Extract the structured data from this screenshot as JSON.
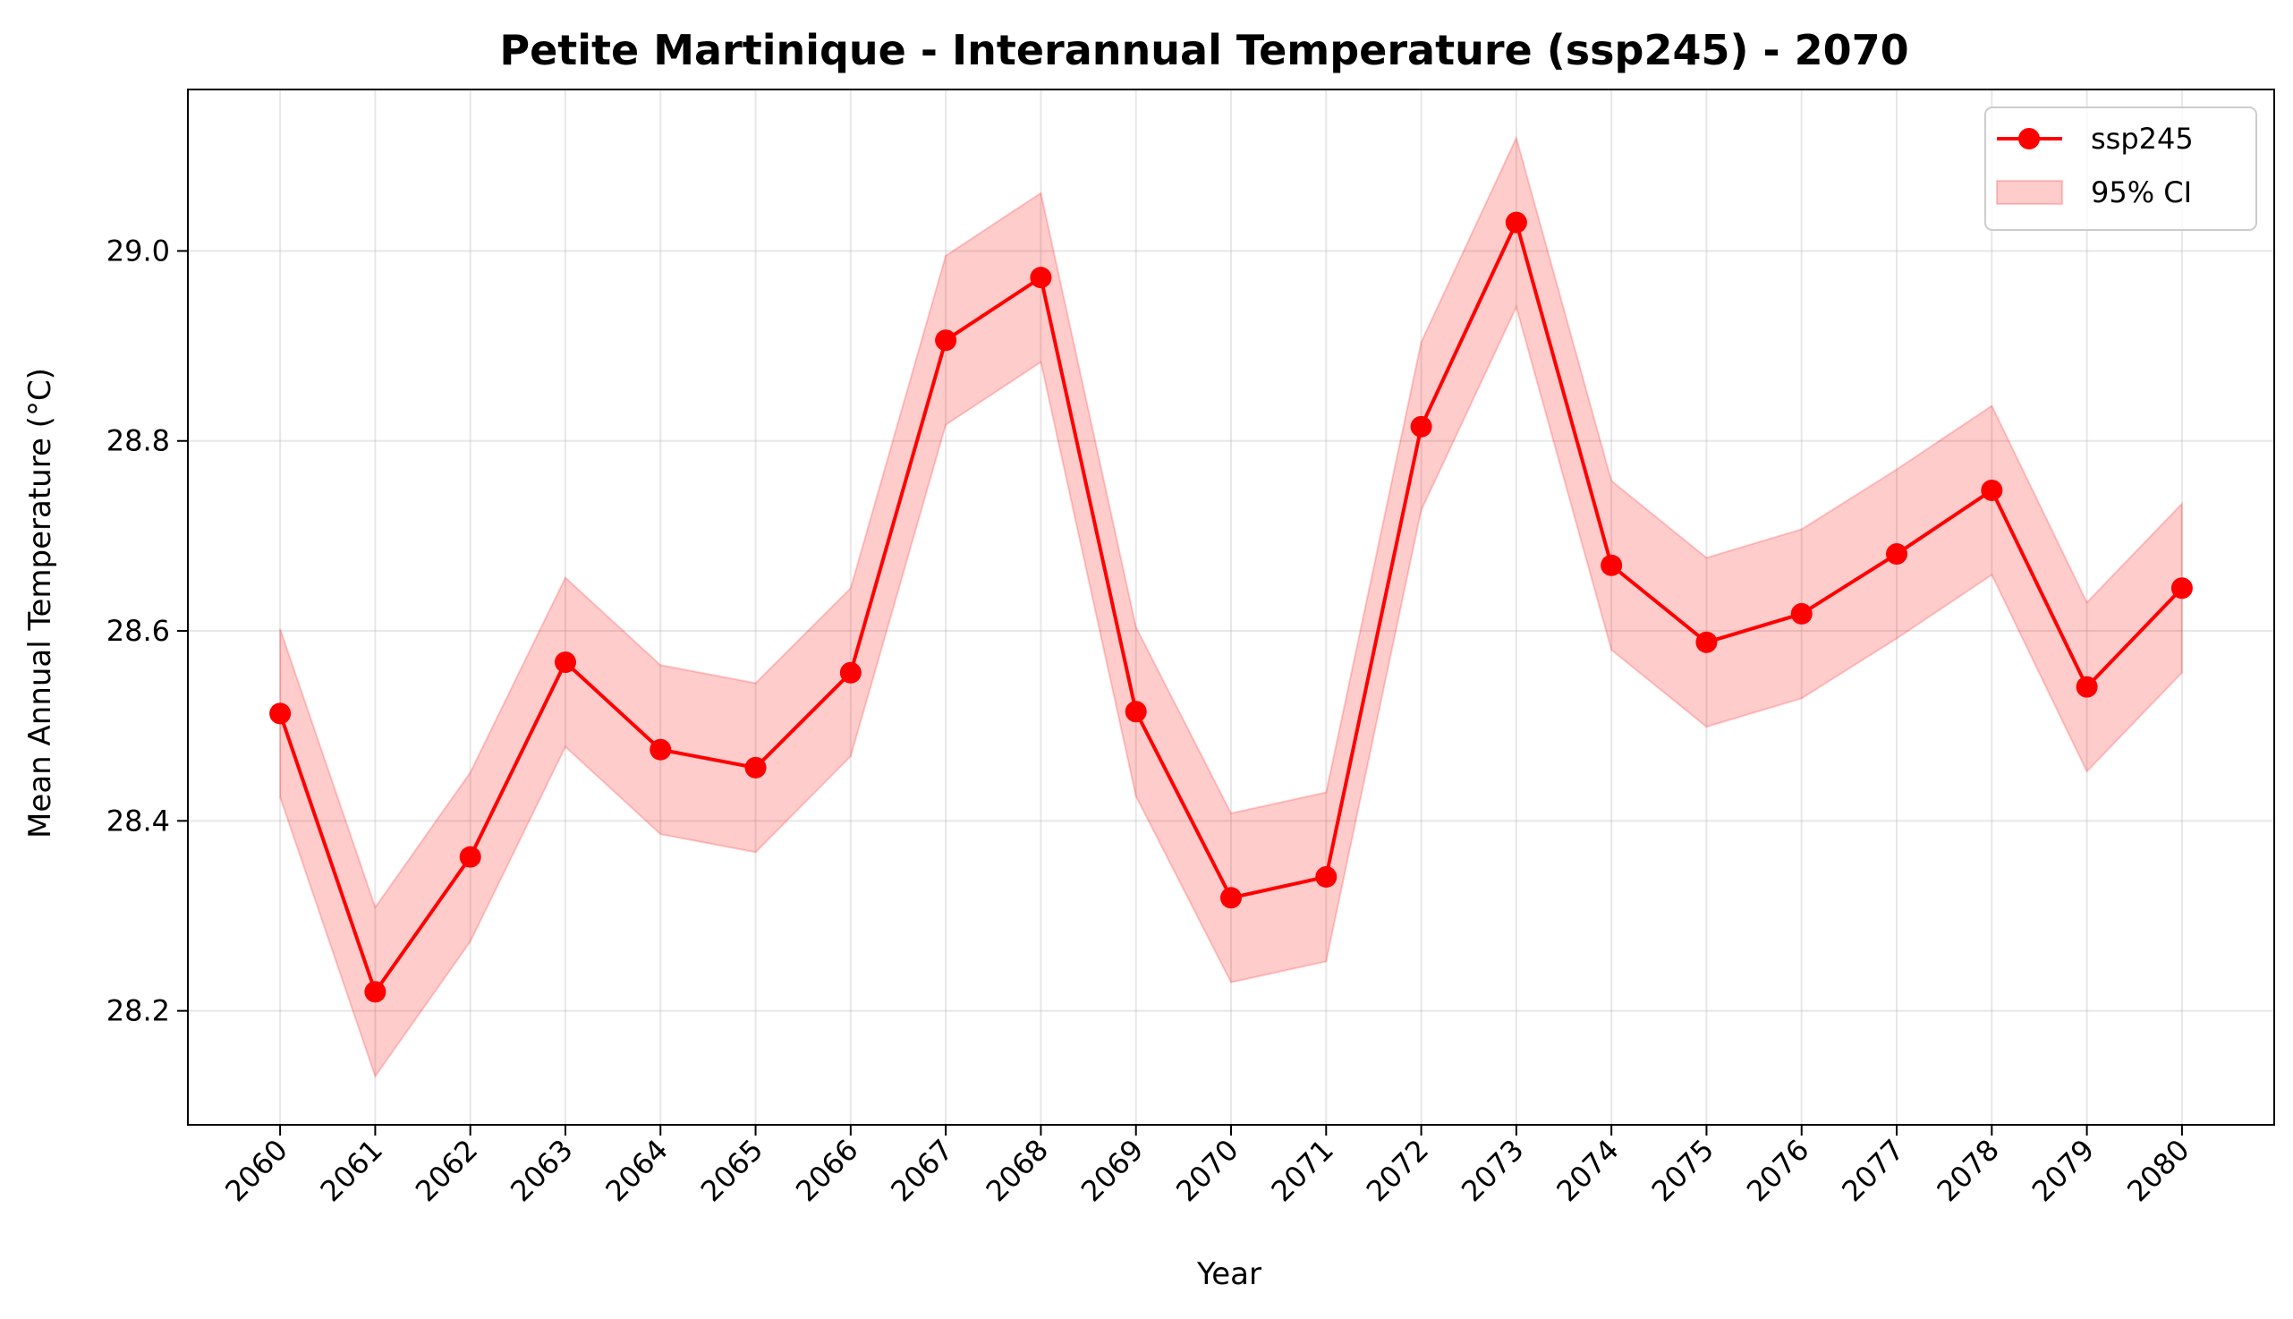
{
  "chart_data": {
    "type": "line",
    "title": "Petite Martinique - Interannual Temperature (ssp245) - 2070",
    "xlabel": "Year",
    "ylabel": "Mean Annual Temperature (°C)",
    "x": [
      2060,
      2061,
      2062,
      2063,
      2064,
      2065,
      2066,
      2067,
      2068,
      2069,
      2070,
      2071,
      2072,
      2073,
      2074,
      2075,
      2076,
      2077,
      2078,
      2079,
      2080
    ],
    "series": [
      {
        "name": "ssp245",
        "color": "#ff0000",
        "values": [
          28.513,
          28.22,
          28.362,
          28.567,
          28.475,
          28.456,
          28.556,
          28.906,
          28.972,
          28.515,
          28.319,
          28.341,
          28.815,
          29.03,
          28.669,
          28.588,
          28.618,
          28.681,
          28.748,
          28.541,
          28.645
        ]
      }
    ],
    "ci": {
      "name": "95% CI",
      "color": "#ff0000",
      "opacity": 0.2,
      "lower": [
        28.425,
        28.131,
        28.273,
        28.478,
        28.386,
        28.367,
        28.468,
        28.817,
        28.883,
        28.426,
        28.23,
        28.252,
        28.727,
        28.941,
        28.58,
        28.499,
        28.529,
        28.592,
        28.659,
        28.452,
        28.556
      ],
      "upper": [
        28.602,
        28.309,
        28.451,
        28.656,
        28.564,
        28.545,
        28.645,
        28.995,
        29.061,
        28.604,
        28.408,
        28.43,
        28.904,
        29.119,
        28.758,
        28.677,
        28.707,
        28.77,
        28.837,
        28.63,
        28.734
      ]
    },
    "xlim": [
      2059.03,
      2080.97
    ],
    "ylim": [
      28.08,
      29.17
    ],
    "yticks": [
      28.2,
      28.4,
      28.6,
      28.8,
      29.0
    ],
    "ytick_labels": [
      "28.2",
      "28.4",
      "28.6",
      "28.8",
      "29.0"
    ],
    "xtick_labels": [
      "2060",
      "2061",
      "2062",
      "2063",
      "2064",
      "2065",
      "2066",
      "2067",
      "2068",
      "2069",
      "2070",
      "2071",
      "2072",
      "2073",
      "2074",
      "2075",
      "2076",
      "2077",
      "2078",
      "2079",
      "2080"
    ],
    "grid": true,
    "legend_position": "upper right"
  }
}
